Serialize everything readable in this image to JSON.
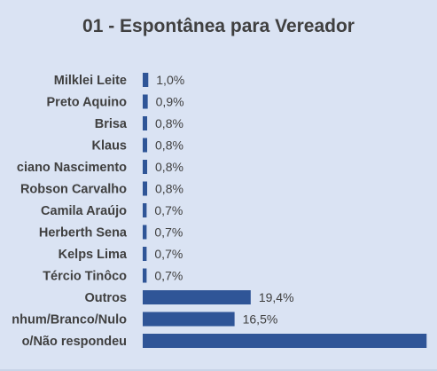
{
  "chart_data": {
    "type": "bar",
    "orientation": "horizontal",
    "title": "01 - Espontânea para Vereador",
    "categories": [
      "Milklei Leite",
      "Preto Aquino",
      "Brisa",
      "Klaus",
      "ciano Nascimento",
      "Robson Carvalho",
      "Camila Araújo",
      "Herberth Sena",
      "Kelps Lima",
      "Tércio Tinôco",
      "Outros",
      "nhum/Branco/Nulo",
      "o/Não respondeu"
    ],
    "values": [
      1.0,
      0.9,
      0.8,
      0.8,
      0.8,
      0.8,
      0.7,
      0.7,
      0.7,
      0.7,
      19.4,
      16.5,
      51.0
    ],
    "value_labels": [
      "1,0%",
      "0,9%",
      "0,8%",
      "0,8%",
      "0,8%",
      "0,8%",
      "0,7%",
      "0,7%",
      "0,7%",
      "0,7%",
      "19,4%",
      "16,5%",
      ""
    ],
    "bar_color": "#2f5597",
    "background": "#dae3f3",
    "grid": false,
    "legend": "none"
  }
}
